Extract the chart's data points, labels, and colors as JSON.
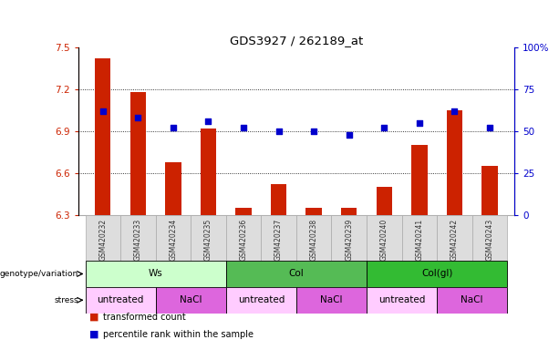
{
  "title": "GDS3927 / 262189_at",
  "categories": [
    "GSM420232",
    "GSM420233",
    "GSM420234",
    "GSM420235",
    "GSM420236",
    "GSM420237",
    "GSM420238",
    "GSM420239",
    "GSM420240",
    "GSM420241",
    "GSM420242",
    "GSM420243"
  ],
  "bar_values": [
    7.42,
    7.18,
    6.68,
    6.92,
    6.35,
    6.52,
    6.35,
    6.35,
    6.5,
    6.8,
    7.05,
    6.65
  ],
  "scatter_values": [
    62,
    58,
    52,
    56,
    52,
    50,
    50,
    48,
    52,
    55,
    62,
    52
  ],
  "ylim_left": [
    6.3,
    7.5
  ],
  "ylim_right": [
    0,
    100
  ],
  "yticks_left": [
    6.3,
    6.6,
    6.9,
    7.2,
    7.5
  ],
  "ytick_labels_left": [
    "6.3",
    "6.6",
    "6.9",
    "7.2",
    "7.5"
  ],
  "yticks_right": [
    0,
    25,
    50,
    75,
    100
  ],
  "ytick_labels_right": [
    "0",
    "25",
    "50",
    "75",
    "100%"
  ],
  "bar_color": "#cc2200",
  "scatter_color": "#0000cc",
  "bg_color": "#ffffff",
  "plot_bg_color": "#ffffff",
  "groups": [
    {
      "label": "Ws",
      "start": 0,
      "end": 3,
      "color": "#ccffcc"
    },
    {
      "label": "Col",
      "start": 4,
      "end": 7,
      "color": "#55bb55"
    },
    {
      "label": "Col(gl)",
      "start": 8,
      "end": 11,
      "color": "#33bb33"
    }
  ],
  "stress_groups": [
    {
      "label": "untreated",
      "start": 0,
      "end": 1,
      "color": "#ffccff"
    },
    {
      "label": "NaCl",
      "start": 2,
      "end": 3,
      "color": "#dd66dd"
    },
    {
      "label": "untreated",
      "start": 4,
      "end": 5,
      "color": "#ffccff"
    },
    {
      "label": "NaCl",
      "start": 6,
      "end": 7,
      "color": "#dd66dd"
    },
    {
      "label": "untreated",
      "start": 8,
      "end": 9,
      "color": "#ffccff"
    },
    {
      "label": "NaCl",
      "start": 10,
      "end": 11,
      "color": "#dd66dd"
    }
  ],
  "legend_items": [
    {
      "label": "transformed count",
      "color": "#cc2200"
    },
    {
      "label": "percentile rank within the sample",
      "color": "#0000cc"
    }
  ],
  "genotype_label": "genotype/variation",
  "stress_label": "stress",
  "left_axis_color": "#cc2200",
  "right_axis_color": "#0000cc",
  "xtick_bg": "#dddddd"
}
